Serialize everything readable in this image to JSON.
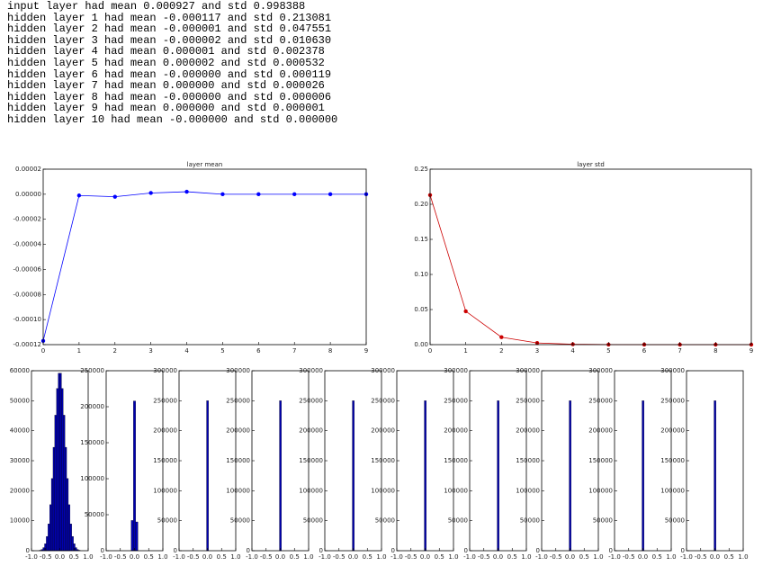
{
  "log_lines": [
    "input layer had mean 0.000927 and std 0.998388",
    "hidden layer 1 had mean -0.000117 and std 0.213081",
    "hidden layer 2 had mean -0.000001 and std 0.047551",
    "hidden layer 3 had mean -0.000002 and std 0.010630",
    "hidden layer 4 had mean 0.000001 and std 0.002378",
    "hidden layer 5 had mean 0.000002 and std 0.000532",
    "hidden layer 6 had mean -0.000000 and std 0.000119",
    "hidden layer 7 had mean 0.000000 and std 0.000026",
    "hidden layer 8 had mean -0.000000 and std 0.000006",
    "hidden layer 9 had mean 0.000000 and std 0.000001",
    "hidden layer 10 had mean -0.000000 and std 0.000000"
  ],
  "chart_data": [
    {
      "type": "line",
      "title": "layer mean",
      "color": "#0000ff",
      "x": [
        0,
        1,
        2,
        3,
        4,
        5,
        6,
        7,
        8,
        9
      ],
      "values": [
        -0.000117,
        -1e-06,
        -2e-06,
        1e-06,
        2e-06,
        0,
        0,
        0,
        0,
        0
      ],
      "xlim": [
        0,
        9
      ],
      "xticks": [
        0,
        1,
        2,
        3,
        4,
        5,
        6,
        7,
        8,
        9
      ],
      "ylim": [
        -0.00012,
        2e-05
      ],
      "yticks": [
        {
          "value": -0.00012,
          "label": "-0.00012"
        },
        {
          "value": -0.0001,
          "label": "-0.00010"
        },
        {
          "value": -8e-05,
          "label": "-0.00008"
        },
        {
          "value": -6e-05,
          "label": "-0.00006"
        },
        {
          "value": -4e-05,
          "label": "-0.00004"
        },
        {
          "value": -2e-05,
          "label": "-0.00002"
        },
        {
          "value": 0,
          "label": "0.00000"
        },
        {
          "value": 2e-05,
          "label": "0.00002"
        }
      ]
    },
    {
      "type": "line",
      "title": "layer std",
      "color": "#cc0000",
      "x": [
        0,
        1,
        2,
        3,
        4,
        5,
        6,
        7,
        8,
        9
      ],
      "values": [
        0.213081,
        0.047551,
        0.01063,
        0.002378,
        0.000532,
        0.000119,
        2.6e-05,
        6e-06,
        1e-06,
        0
      ],
      "xlim": [
        0,
        9
      ],
      "xticks": [
        0,
        1,
        2,
        3,
        4,
        5,
        6,
        7,
        8,
        9
      ],
      "ylim": [
        0,
        0.25
      ],
      "yticks": [
        {
          "value": 0,
          "label": "0.00"
        },
        {
          "value": 0.05,
          "label": "0.05"
        },
        {
          "value": 0.1,
          "label": "0.10"
        },
        {
          "value": 0.15,
          "label": "0.15"
        },
        {
          "value": 0.2,
          "label": "0.20"
        },
        {
          "value": 0.25,
          "label": "0.25"
        }
      ]
    },
    {
      "type": "histogram",
      "color": "#0000b0",
      "bins": [
        -0.72,
        -0.66,
        -0.6,
        -0.54,
        -0.48,
        -0.42,
        -0.36,
        -0.3,
        -0.24,
        -0.18,
        -0.12,
        -0.06,
        0,
        0.06,
        0.12,
        0.18,
        0.24,
        0.3,
        0.36,
        0.42,
        0.48,
        0.54,
        0.6,
        0.66,
        0.72
      ],
      "values": [
        156,
        420,
        1030,
        2320,
        4760,
        8940,
        15340,
        24060,
        34480,
        45180,
        54090,
        59170,
        59170,
        54090,
        45180,
        34480,
        24060,
        15340,
        8940,
        4760,
        2320,
        1030,
        420,
        156
      ],
      "xlim": [
        -1,
        1
      ],
      "xticks": [
        {
          "value": -1,
          "label": "-1.0"
        },
        {
          "value": -0.5,
          "label": "-0.5"
        },
        {
          "value": 0,
          "label": "0.0"
        },
        {
          "value": 0.5,
          "label": "0.5"
        },
        {
          "value": 1,
          "label": "1.0"
        }
      ],
      "ylim": [
        0,
        60000
      ],
      "yticks": [
        0,
        10000,
        20000,
        30000,
        40000,
        50000,
        60000
      ]
    },
    {
      "type": "histogram",
      "color": "#0000b0",
      "bins": [
        -0.12,
        -0.04,
        0.04,
        0.12
      ],
      "values": [
        42000,
        208000,
        40000
      ],
      "xlim": [
        -1,
        1
      ],
      "xticks": [
        {
          "value": -1,
          "label": "-1.0"
        },
        {
          "value": -0.5,
          "label": "-0.5"
        },
        {
          "value": 0,
          "label": "0.0"
        },
        {
          "value": 0.5,
          "label": "0.5"
        },
        {
          "value": 1,
          "label": "1.0"
        }
      ],
      "ylim": [
        0,
        250000
      ],
      "yticks": [
        0,
        50000,
        100000,
        150000,
        200000,
        250000
      ]
    },
    {
      "type": "histogram",
      "color": "#0000b0",
      "bins": [
        -0.03,
        0.04
      ],
      "values": [
        250000
      ],
      "xlim": [
        -1,
        1
      ],
      "xticks": [
        {
          "value": -1,
          "label": "-1.0"
        },
        {
          "value": -0.5,
          "label": "-0.5"
        },
        {
          "value": 0,
          "label": "0.0"
        },
        {
          "value": 0.5,
          "label": "0.5"
        },
        {
          "value": 1,
          "label": "1.0"
        }
      ],
      "ylim": [
        0,
        300000
      ],
      "yticks": [
        0,
        50000,
        100000,
        150000,
        200000,
        250000,
        300000
      ]
    },
    {
      "type": "histogram",
      "color": "#0000b0",
      "bins": [
        -0.03,
        0.04
      ],
      "values": [
        250000
      ],
      "xlim": [
        -1,
        1
      ],
      "xticks": [
        {
          "value": -1,
          "label": "-1.0"
        },
        {
          "value": -0.5,
          "label": "-0.5"
        },
        {
          "value": 0,
          "label": "0.0"
        },
        {
          "value": 0.5,
          "label": "0.5"
        },
        {
          "value": 1,
          "label": "1.0"
        }
      ],
      "ylim": [
        0,
        300000
      ],
      "yticks": [
        0,
        50000,
        100000,
        150000,
        200000,
        250000,
        300000
      ]
    },
    {
      "type": "histogram",
      "color": "#0000b0",
      "bins": [
        -0.03,
        0.04
      ],
      "values": [
        250000
      ],
      "xlim": [
        -1,
        1
      ],
      "xticks": [
        {
          "value": -1,
          "label": "-1.0"
        },
        {
          "value": -0.5,
          "label": "-0.5"
        },
        {
          "value": 0,
          "label": "0.0"
        },
        {
          "value": 0.5,
          "label": "0.5"
        },
        {
          "value": 1,
          "label": "1.0"
        }
      ],
      "ylim": [
        0,
        300000
      ],
      "yticks": [
        0,
        50000,
        100000,
        150000,
        200000,
        250000,
        300000
      ]
    },
    {
      "type": "histogram",
      "color": "#0000b0",
      "bins": [
        -0.03,
        0.04
      ],
      "values": [
        250000
      ],
      "xlim": [
        -1,
        1
      ],
      "xticks": [
        {
          "value": -1,
          "label": "-1.0"
        },
        {
          "value": -0.5,
          "label": "-0.5"
        },
        {
          "value": 0,
          "label": "0.0"
        },
        {
          "value": 0.5,
          "label": "0.5"
        },
        {
          "value": 1,
          "label": "1.0"
        }
      ],
      "ylim": [
        0,
        300000
      ],
      "yticks": [
        0,
        50000,
        100000,
        150000,
        200000,
        250000,
        300000
      ]
    },
    {
      "type": "histogram",
      "color": "#0000b0",
      "bins": [
        -0.03,
        0.04
      ],
      "values": [
        250000
      ],
      "xlim": [
        -1,
        1
      ],
      "xticks": [
        {
          "value": -1,
          "label": "-1.0"
        },
        {
          "value": -0.5,
          "label": "-0.5"
        },
        {
          "value": 0,
          "label": "0.0"
        },
        {
          "value": 0.5,
          "label": "0.5"
        },
        {
          "value": 1,
          "label": "1.0"
        }
      ],
      "ylim": [
        0,
        300000
      ],
      "yticks": [
        0,
        50000,
        100000,
        150000,
        200000,
        250000,
        300000
      ]
    },
    {
      "type": "histogram",
      "color": "#0000b0",
      "bins": [
        -0.03,
        0.04
      ],
      "values": [
        250000
      ],
      "xlim": [
        -1,
        1
      ],
      "xticks": [
        {
          "value": -1,
          "label": "-1.0"
        },
        {
          "value": -0.5,
          "label": "-0.5"
        },
        {
          "value": 0,
          "label": "0.0"
        },
        {
          "value": 0.5,
          "label": "0.5"
        },
        {
          "value": 1,
          "label": "1.0"
        }
      ],
      "ylim": [
        0,
        300000
      ],
      "yticks": [
        0,
        50000,
        100000,
        150000,
        200000,
        250000,
        300000
      ]
    },
    {
      "type": "histogram",
      "color": "#0000b0",
      "bins": [
        -0.03,
        0.04
      ],
      "values": [
        250000
      ],
      "xlim": [
        -1,
        1
      ],
      "xticks": [
        {
          "value": -1,
          "label": "-1.0"
        },
        {
          "value": -0.5,
          "label": "-0.5"
        },
        {
          "value": 0,
          "label": "0.0"
        },
        {
          "value": 0.5,
          "label": "0.5"
        },
        {
          "value": 1,
          "label": "1.0"
        }
      ],
      "ylim": [
        0,
        300000
      ],
      "yticks": [
        0,
        50000,
        100000,
        150000,
        200000,
        250000,
        300000
      ]
    },
    {
      "type": "histogram",
      "color": "#0000b0",
      "bins": [
        -0.03,
        0.04
      ],
      "values": [
        250000
      ],
      "xlim": [
        -1,
        1
      ],
      "xticks": [
        {
          "value": -1,
          "label": "-1.0"
        },
        {
          "value": -0.5,
          "label": "-0.5"
        },
        {
          "value": 0,
          "label": "0.0"
        },
        {
          "value": 0.5,
          "label": "0.5"
        },
        {
          "value": 1,
          "label": "1.0"
        }
      ],
      "ylim": [
        0,
        300000
      ],
      "yticks": [
        0,
        50000,
        100000,
        150000,
        200000,
        250000,
        300000
      ]
    }
  ]
}
